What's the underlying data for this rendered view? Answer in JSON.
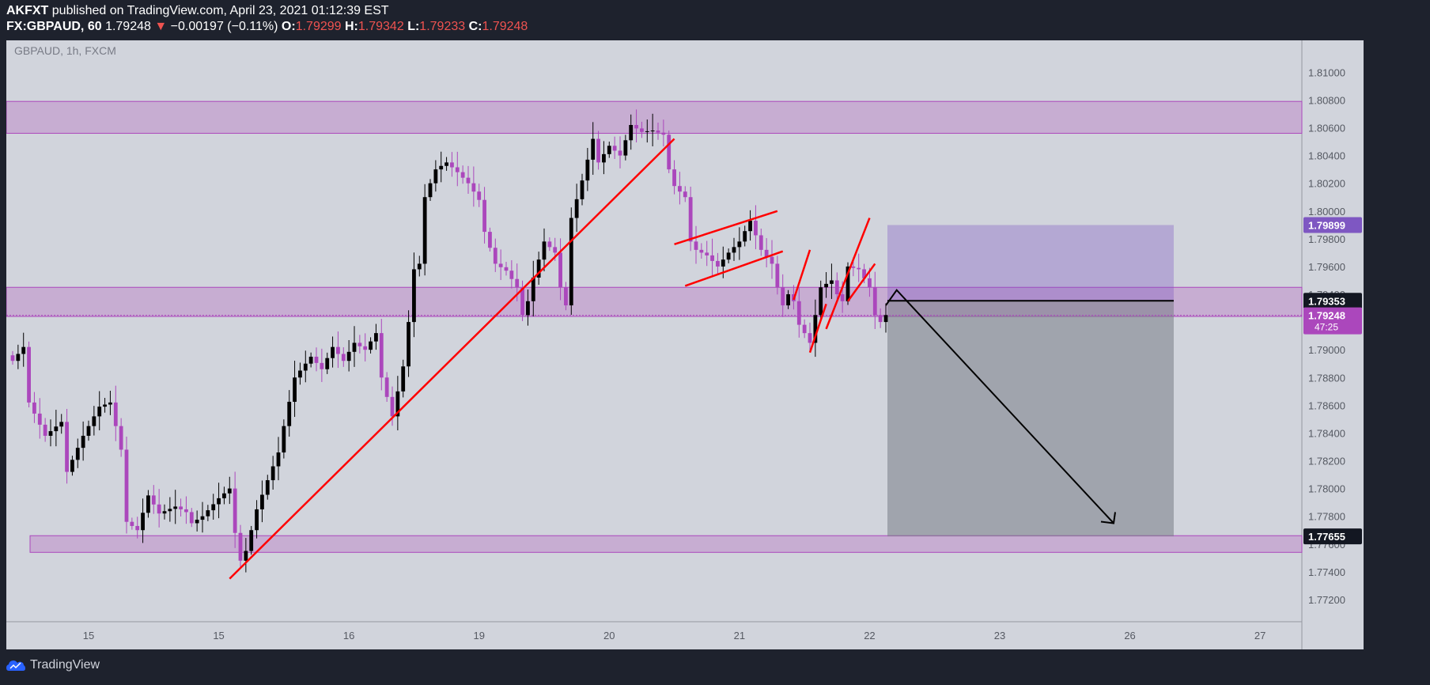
{
  "header": {
    "publisher": "AKFXT",
    "published_text": "published on TradingView.com, April 23, 2021 01:12:39 EST",
    "symbol": "FX:GBPAUD, 60",
    "last": "1.79248",
    "change_arrow": "▼",
    "change": "−0.00197 (−0.11%)",
    "o_label": "O:",
    "o_value": "1.79299",
    "h_label": "H:",
    "h_value": "1.79342",
    "l_label": "L:",
    "l_value": "1.79233",
    "c_label": "C:",
    "c_value": "1.79248"
  },
  "chart_data": {
    "type": "candlestick",
    "watermark": "GBPAUD, 1h, FXCM",
    "ylim": [
      1.7704,
      1.8123
    ],
    "x_ticks": [
      {
        "i": 14,
        "label": "15"
      },
      {
        "i": 38,
        "label": "15"
      },
      {
        "i": 62,
        "label": "16"
      },
      {
        "i": 86,
        "label": "19"
      },
      {
        "i": 110,
        "label": "20"
      },
      {
        "i": 134,
        "label": "21"
      },
      {
        "i": 158,
        "label": "22"
      },
      {
        "i": 182,
        "label": "23"
      },
      {
        "i": 206,
        "label": "26"
      },
      {
        "i": 230,
        "label": "27"
      }
    ],
    "y_ticks": [
      "1.81000",
      "1.80800",
      "1.80600",
      "1.80400",
      "1.80200",
      "1.80000",
      "1.79800",
      "1.79600",
      "1.79400",
      "1.79200",
      "1.79000",
      "1.78800",
      "1.78600",
      "1.78400",
      "1.78200",
      "1.78000",
      "1.77800",
      "1.77600",
      "1.77400",
      "1.77200"
    ],
    "anchors": [
      [
        0,
        1.7892
      ],
      [
        2,
        1.7902
      ],
      [
        3,
        1.7862
      ],
      [
        6,
        1.7838
      ],
      [
        9,
        1.7848
      ],
      [
        10,
        1.7812
      ],
      [
        13,
        1.7838
      ],
      [
        16,
        1.7859
      ],
      [
        18,
        1.7862
      ],
      [
        20,
        1.7828
      ],
      [
        21,
        1.7776
      ],
      [
        23,
        1.777
      ],
      [
        25,
        1.7795
      ],
      [
        27,
        1.7782
      ],
      [
        30,
        1.7787
      ],
      [
        32,
        1.7783
      ],
      [
        33,
        1.7775
      ],
      [
        35,
        1.778
      ],
      [
        38,
        1.7793
      ],
      [
        40,
        1.78
      ],
      [
        41,
        1.7768
      ],
      [
        42,
        1.7748
      ],
      [
        43,
        1.7755
      ],
      [
        45,
        1.7785
      ],
      [
        47,
        1.7806
      ],
      [
        49,
        1.7826
      ],
      [
        50,
        1.7845
      ],
      [
        52,
        1.788
      ],
      [
        55,
        1.7895
      ],
      [
        57,
        1.7886
      ],
      [
        59,
        1.7902
      ],
      [
        61,
        1.7892
      ],
      [
        63,
        1.7905
      ],
      [
        65,
        1.79
      ],
      [
        67,
        1.7912
      ],
      [
        68,
        1.788
      ],
      [
        70,
        1.7852
      ],
      [
        72,
        1.7888
      ],
      [
        73,
        1.792
      ],
      [
        74,
        1.7958
      ],
      [
        75,
        1.7962
      ],
      [
        76,
        1.801
      ],
      [
        78,
        1.803
      ],
      [
        80,
        1.8035
      ],
      [
        82,
        1.8028
      ],
      [
        84,
        1.802
      ],
      [
        86,
        1.8008
      ],
      [
        87,
        1.7985
      ],
      [
        89,
        1.7962
      ],
      [
        91,
        1.7957
      ],
      [
        93,
        1.7945
      ],
      [
        94,
        1.7925
      ],
      [
        95,
        1.7935
      ],
      [
        96,
        1.7952
      ],
      [
        98,
        1.7978
      ],
      [
        100,
        1.797
      ],
      [
        101,
        1.7945
      ],
      [
        102,
        1.7932
      ],
      [
        103,
        1.7995
      ],
      [
        105,
        1.8022
      ],
      [
        107,
        1.8052
      ],
      [
        108,
        1.8035
      ],
      [
        110,
        1.8047
      ],
      [
        112,
        1.804
      ],
      [
        114,
        1.8062
      ],
      [
        116,
        1.8057
      ],
      [
        118,
        1.8058
      ],
      [
        120,
        1.8055
      ],
      [
        121,
        1.803
      ],
      [
        122,
        1.8018
      ],
      [
        124,
        1.801
      ],
      [
        125,
        1.7978
      ],
      [
        126,
        1.7972
      ],
      [
        128,
        1.7968
      ],
      [
        130,
        1.796
      ],
      [
        132,
        1.797
      ],
      [
        134,
        1.7978
      ],
      [
        136,
        1.7993
      ],
      [
        138,
        1.7972
      ],
      [
        140,
        1.7962
      ],
      [
        141,
        1.7945
      ],
      [
        142,
        1.7932
      ],
      [
        143,
        1.794
      ],
      [
        144,
        1.7935
      ],
      [
        145,
        1.7918
      ],
      [
        146,
        1.7912
      ],
      [
        147,
        1.7905
      ],
      [
        148,
        1.7925
      ],
      [
        149,
        1.7945
      ],
      [
        151,
        1.795
      ],
      [
        152,
        1.794
      ],
      [
        153,
        1.7935
      ],
      [
        154,
        1.796
      ],
      [
        156,
        1.7958
      ],
      [
        158,
        1.7945
      ],
      [
        159,
        1.7925
      ],
      [
        160,
        1.792
      ],
      [
        161,
        1.7925
      ]
    ],
    "zones": [
      {
        "from": 1.8056,
        "to": 1.8079
      },
      {
        "from": 1.7924,
        "to": 1.7945
      },
      {
        "from": 1.7754,
        "to": 1.7766
      }
    ],
    "position": {
      "target": 1.79899,
      "entry": 1.79353,
      "stop": 1.77655
    },
    "price_labels": [
      {
        "value": 1.79899,
        "label": "1.79899",
        "bg": "#7e57c2",
        "fg": "#ffffff"
      },
      {
        "value": 1.79353,
        "label": "1.79353",
        "bg": "#131722",
        "fg": "#ffffff"
      },
      {
        "value": 1.79248,
        "label": "1.79248",
        "sub": "47:25",
        "bg": "#ab47bc",
        "fg": "#ffffff"
      },
      {
        "value": 1.77655,
        "label": "1.77655",
        "bg": "#131722",
        "fg": "#ffffff"
      }
    ],
    "trendlines": [
      [
        [
          40,
          1.7735
        ],
        [
          122,
          1.8052
        ]
      ],
      [
        [
          122,
          1.7976
        ],
        [
          141,
          1.8
        ]
      ],
      [
        [
          124,
          1.7946
        ],
        [
          142,
          1.7971
        ]
      ],
      [
        [
          144,
          1.7936
        ],
        [
          147,
          1.7972
        ]
      ],
      [
        [
          147,
          1.7898
        ],
        [
          150,
          1.7933
        ]
      ],
      [
        [
          150,
          1.7915
        ],
        [
          158,
          1.7995
        ]
      ],
      [
        [
          154,
          1.7935
        ],
        [
          159,
          1.7962
        ]
      ]
    ],
    "arrow_path": [
      [
        161,
        1.7932
      ],
      [
        163,
        1.7943
      ],
      [
        203,
        1.7775
      ]
    ],
    "colors": {
      "bull": "#000000",
      "bear": "#ab47bc",
      "zone": "#ab47bc",
      "trendline": "#ff0000",
      "target_box": "#7e57c2",
      "stop_box": "#787b86",
      "arrow": "#000000",
      "background": "#d1d4dc"
    }
  },
  "footer": {
    "brand": "TradingView"
  }
}
